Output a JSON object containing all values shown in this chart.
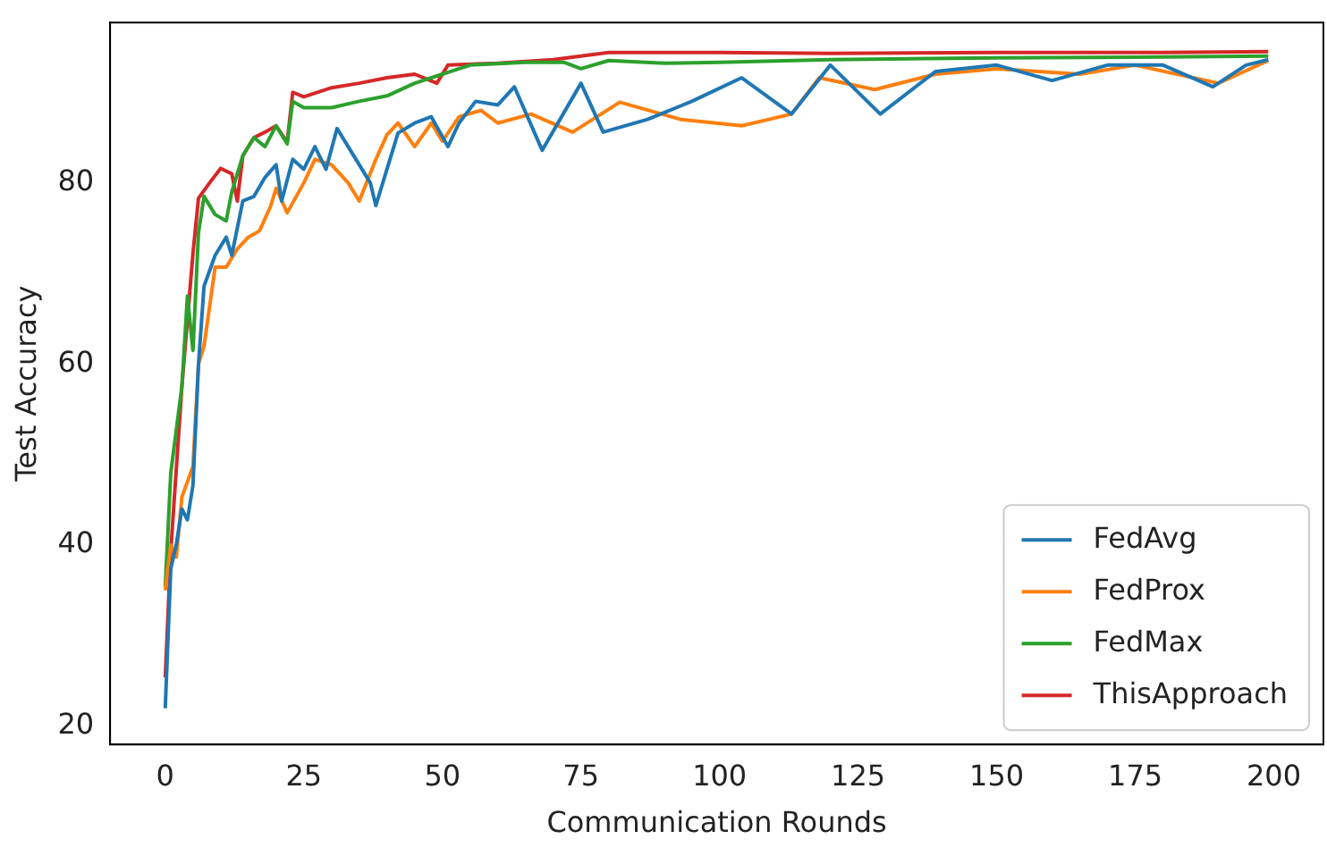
{
  "chart_data": {
    "type": "line",
    "xlabel": "Communication Rounds",
    "ylabel": "Test Accuracy",
    "xlim": [
      -9.95,
      208.95
    ],
    "ylim": [
      18,
      97.7
    ],
    "xticks": [
      0,
      25,
      50,
      75,
      100,
      125,
      150,
      175,
      200
    ],
    "yticks": [
      20,
      40,
      60,
      80
    ],
    "legend": "bottom right",
    "grid": false,
    "marker": "none",
    "line_style": "solid",
    "series": [
      {
        "name": "FedAvg",
        "color": "#1f77b4",
        "x": [
          0,
          1,
          2,
          3,
          4,
          5,
          6,
          7,
          9,
          11,
          12,
          14,
          16,
          18,
          20,
          21,
          23,
          25,
          27,
          29,
          31,
          33,
          35,
          37,
          38,
          40,
          42,
          45,
          48,
          51,
          53,
          56,
          60,
          63,
          68,
          75,
          79,
          87,
          95,
          104,
          113,
          120,
          129,
          139,
          150,
          160,
          170,
          180,
          189,
          195,
          199
        ],
        "values": [
          22,
          37.4,
          40.1,
          44,
          42.8,
          46.6,
          60,
          68.6,
          72,
          74,
          72,
          78,
          78.5,
          80.6,
          82,
          78,
          82.6,
          81.5,
          84,
          81.5,
          86,
          84,
          82,
          80,
          77.5,
          81.5,
          85.5,
          86.6,
          87.3,
          84,
          86.6,
          89,
          88.6,
          90.6,
          83.6,
          91,
          85.6,
          87,
          89,
          91.6,
          87.6,
          93,
          87.6,
          92.3,
          93,
          91.3,
          93,
          93,
          90.6,
          93,
          93.6
        ]
      },
      {
        "name": "FedProx",
        "color": "#ff7f0e",
        "x": [
          0,
          1,
          2,
          3,
          5,
          6,
          7,
          9,
          11,
          13,
          15,
          17,
          19,
          20,
          22,
          25,
          27,
          30,
          33,
          35,
          38,
          40,
          42,
          45,
          48,
          50,
          53,
          57,
          60,
          66,
          73.5,
          82,
          93,
          104,
          113,
          118,
          128,
          139,
          150,
          165,
          175,
          190,
          199
        ],
        "values": [
          35,
          40,
          38.7,
          45.3,
          48.7,
          60,
          62,
          70.7,
          70.7,
          72.7,
          74,
          74.7,
          77.4,
          79.4,
          76.7,
          80,
          82.6,
          82,
          80,
          78,
          82.6,
          85.3,
          86.6,
          84,
          86.6,
          84.6,
          87.3,
          88,
          86.6,
          87.6,
          85.6,
          88.9,
          87,
          86.3,
          87.6,
          91.6,
          90.3,
          92,
          92.6,
          92,
          93,
          91,
          93.5
        ]
      },
      {
        "name": "FedMax",
        "color": "#2ca02c",
        "x": [
          0,
          1,
          3,
          4,
          5,
          6,
          7,
          9,
          11,
          12,
          14,
          16,
          18,
          20,
          22,
          23,
          25,
          30,
          35,
          40,
          45,
          50,
          55,
          65,
          72,
          75,
          80,
          90,
          100,
          120,
          150,
          180,
          199
        ],
        "values": [
          35.4,
          48,
          57.5,
          67.5,
          61.5,
          74.5,
          78.5,
          76.5,
          75.8,
          79,
          83,
          85,
          84,
          86.3,
          84.3,
          89,
          88.3,
          88.3,
          89,
          89.6,
          91,
          92,
          93,
          93.3,
          93.3,
          92.6,
          93.5,
          93.2,
          93.3,
          93.6,
          93.8,
          93.9,
          94
        ]
      },
      {
        "name": "ThisApproach",
        "color": "#d62728",
        "x": [
          0,
          1,
          3,
          5,
          6,
          8,
          10,
          12,
          13,
          14,
          16,
          18,
          20,
          22,
          23,
          25,
          30,
          35,
          40,
          45,
          49,
          51,
          60,
          70,
          80,
          100,
          120,
          150,
          180,
          199
        ],
        "values": [
          25.4,
          39.4,
          57.5,
          72.2,
          78.3,
          80,
          81.6,
          81,
          78,
          83,
          85,
          85.6,
          86.3,
          84.5,
          90,
          89.5,
          90.5,
          91,
          91.6,
          92,
          91,
          93,
          93.2,
          93.6,
          94.4,
          94.4,
          94.3,
          94.4,
          94.4,
          94.5
        ]
      }
    ]
  }
}
